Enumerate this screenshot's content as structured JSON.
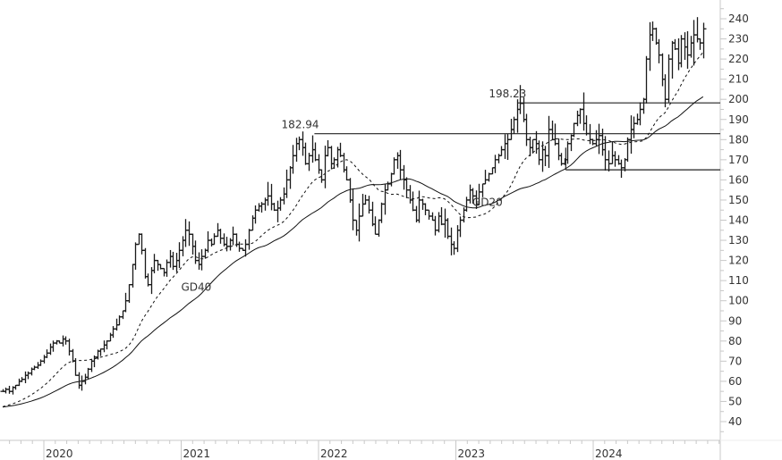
{
  "chart_data": {
    "type": "ohlc-bar",
    "title": "",
    "xlabel": "",
    "ylabel": "",
    "ylim": [
      30,
      245
    ],
    "y_ticks": [
      40,
      50,
      60,
      70,
      80,
      90,
      100,
      110,
      120,
      130,
      140,
      150,
      160,
      170,
      180,
      190,
      200,
      210,
      220,
      230,
      240
    ],
    "x_ticks": [
      {
        "label": "2020",
        "t": 2020.0
      },
      {
        "label": "2021",
        "t": 2021.0
      },
      {
        "label": "2022",
        "t": 2022.0
      },
      {
        "label": "2023",
        "t": 2023.0
      },
      {
        "label": "2024",
        "t": 2024.0
      }
    ],
    "x_range": [
      2019.68,
      2024.83
    ],
    "frequency": "weekly",
    "start_t": 2019.7,
    "closes": [
      55,
      56,
      55,
      57,
      58,
      60,
      61,
      63,
      64,
      66,
      67,
      68,
      70,
      72,
      74,
      77,
      79,
      80,
      79,
      81,
      80,
      75,
      70,
      63,
      58,
      60,
      62,
      66,
      70,
      72,
      75,
      76,
      78,
      80,
      83,
      86,
      88,
      92,
      95,
      100,
      108,
      118,
      128,
      133,
      125,
      112,
      108,
      115,
      120,
      118,
      116,
      114,
      119,
      122,
      117,
      120,
      125,
      130,
      135,
      133,
      127,
      120,
      118,
      122,
      125,
      130,
      128,
      132,
      135,
      131,
      128,
      127,
      130,
      133,
      128,
      126,
      125,
      128,
      135,
      141,
      145,
      147,
      148,
      150,
      152,
      148,
      145,
      146,
      150,
      153,
      160,
      166,
      172,
      178,
      180,
      176,
      168,
      172,
      175,
      170,
      165,
      160,
      172,
      176,
      168,
      170,
      175,
      172,
      165,
      160,
      150,
      140,
      135,
      142,
      148,
      150,
      145,
      138,
      133,
      140,
      148,
      155,
      158,
      163,
      170,
      172,
      165,
      160,
      155,
      150,
      145,
      140,
      150,
      148,
      145,
      142,
      140,
      135,
      142,
      138,
      140,
      132,
      128,
      126,
      135,
      140,
      145,
      150,
      155,
      152,
      148,
      154,
      158,
      160,
      163,
      166,
      170,
      172,
      175,
      178,
      180,
      185,
      190,
      195,
      198,
      190,
      180,
      176,
      180,
      178,
      170,
      175,
      172,
      185,
      180,
      178,
      172,
      168,
      170,
      178,
      182,
      188,
      192,
      195,
      188,
      183,
      180,
      178,
      180,
      182,
      175,
      170,
      168,
      172,
      170,
      168,
      166,
      170,
      180,
      185,
      188,
      190,
      195,
      200,
      220,
      232,
      235,
      228,
      222,
      210,
      200,
      220,
      228,
      225,
      218,
      230,
      226,
      222,
      228,
      232,
      230,
      228,
      235
    ],
    "moving_averages": [
      {
        "name": "GD20",
        "period": 20,
        "style": "dashed",
        "label_pos": {
          "t": 2023.12,
          "price": 147
        }
      },
      {
        "name": "GD40",
        "period": 40,
        "style": "solid",
        "label_pos": {
          "t": 2021.0,
          "price": 105
        }
      }
    ],
    "annotations": [
      {
        "text": "182.94",
        "price": 182.94,
        "label_t": 2021.73,
        "line_from_t": 2021.97,
        "line_to_t": 2024.84
      },
      {
        "text": "198.23",
        "price": 198.23,
        "label_t": 2023.24,
        "line_from_t": 2023.45,
        "line_to_t": 2024.84
      }
    ],
    "support_line": {
      "price": 165,
      "from_t": 2023.8,
      "to_t": 2024.84
    },
    "colors": {
      "bars": "#1a1a1a",
      "axis": "#c8c8c8",
      "text": "#333333",
      "label": "#2a4a7a"
    }
  }
}
